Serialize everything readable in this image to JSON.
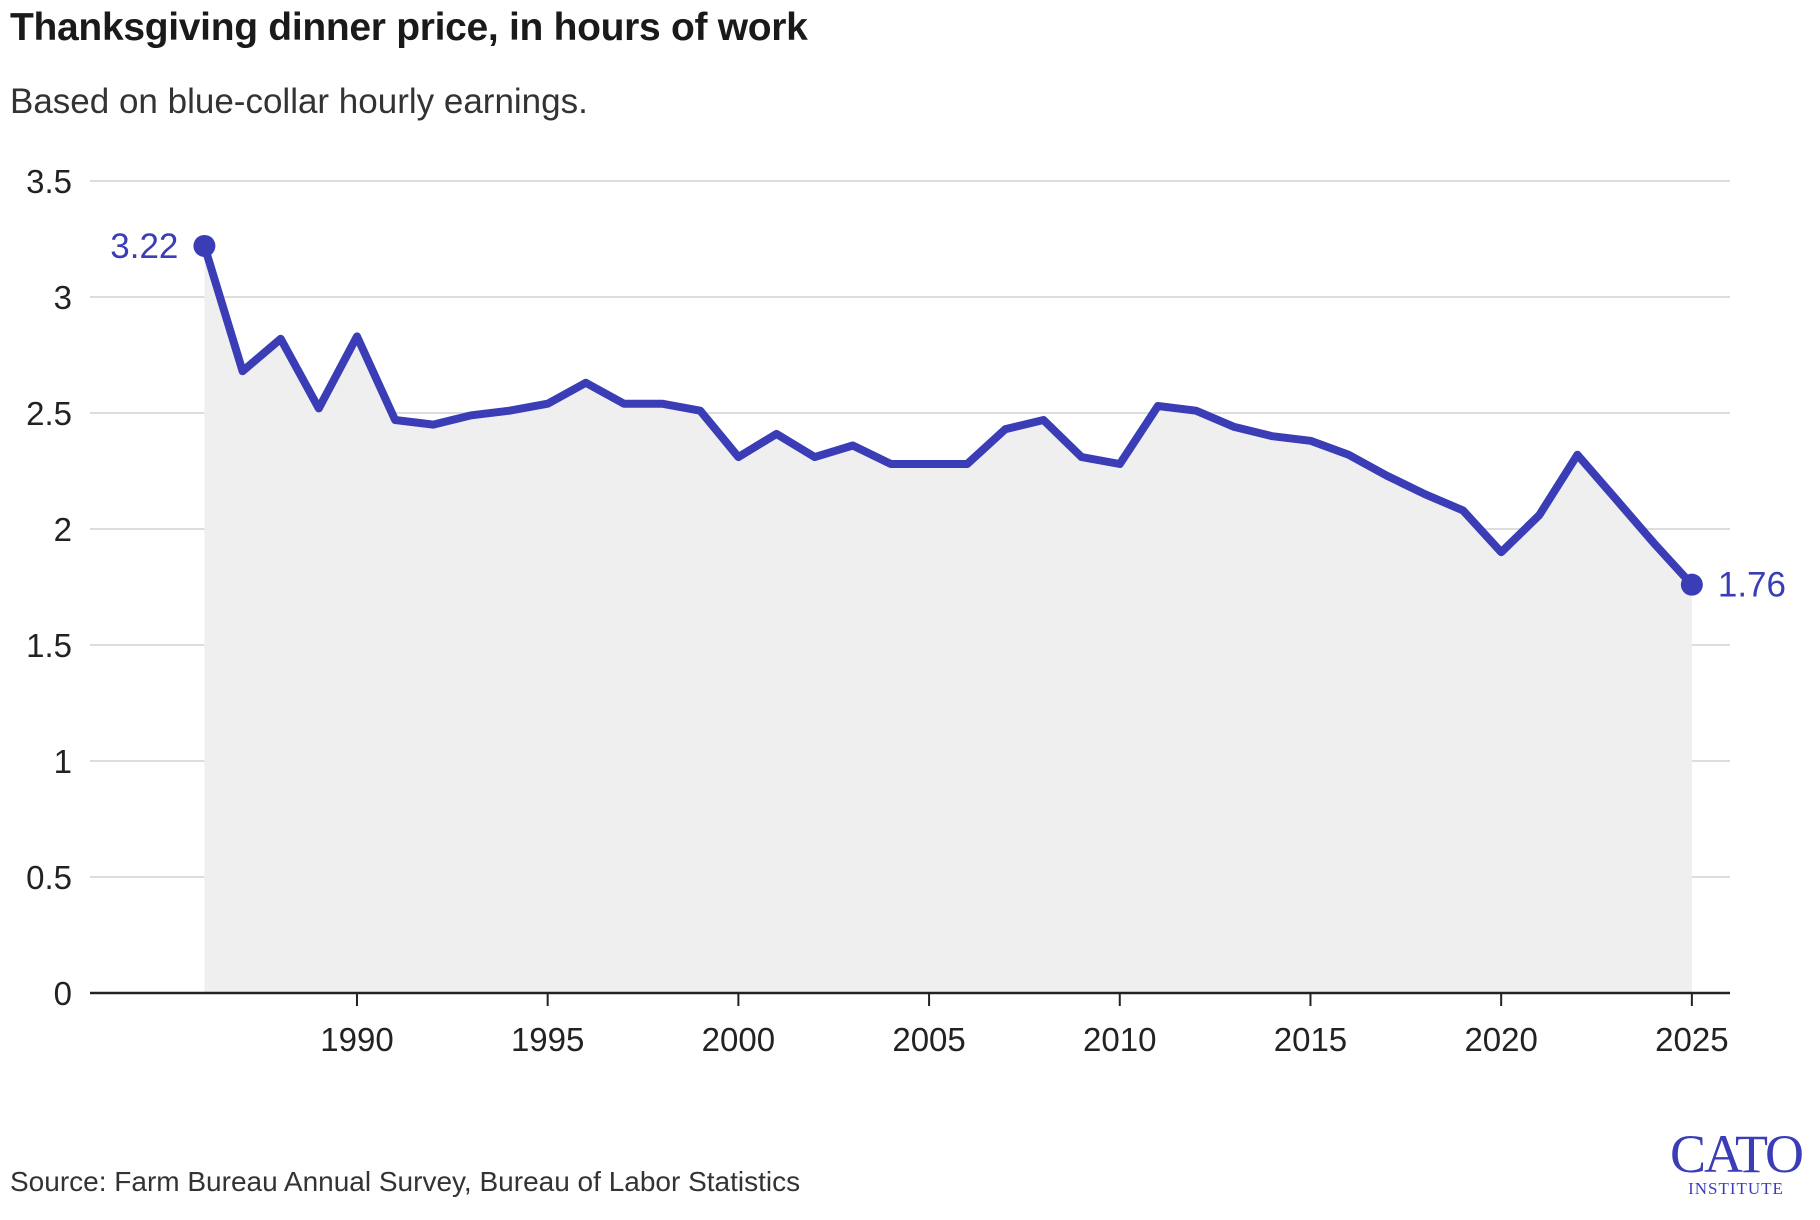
{
  "title": "Thanksgiving dinner price, in hours of work",
  "subtitle": "Based on blue-collar hourly earnings.",
  "source": "Source: Farm Bureau Annual Survey, Bureau of Labor Statistics",
  "logo": {
    "line1": "CATO",
    "line2": "INSTITUTE"
  },
  "colors": {
    "line": "#3a3db5",
    "area": "#efefef",
    "grid": "#dddddd",
    "axis": "#222222"
  },
  "chart_data": {
    "type": "area",
    "title": "Thanksgiving dinner price, in hours of work",
    "xlabel": "",
    "ylabel": "",
    "xlim": [
      1983,
      2026
    ],
    "ylim": [
      0,
      3.5
    ],
    "grid": true,
    "x_ticks": [
      1990,
      1995,
      2000,
      2005,
      2010,
      2015,
      2020,
      2025
    ],
    "y_ticks": [
      0,
      0.5,
      1,
      1.5,
      2,
      2.5,
      3,
      3.5
    ],
    "x": [
      1986,
      1987,
      1988,
      1989,
      1990,
      1991,
      1992,
      1993,
      1994,
      1995,
      1996,
      1997,
      1998,
      1999,
      2000,
      2001,
      2002,
      2003,
      2004,
      2005,
      2006,
      2007,
      2008,
      2009,
      2010,
      2011,
      2012,
      2013,
      2014,
      2015,
      2016,
      2017,
      2018,
      2019,
      2020,
      2021,
      2022,
      2023,
      2024,
      2025
    ],
    "series": [
      {
        "name": "Hours of work",
        "values": [
          3.22,
          2.68,
          2.82,
          2.52,
          2.83,
          2.47,
          2.45,
          2.49,
          2.51,
          2.54,
          2.63,
          2.54,
          2.54,
          2.51,
          2.31,
          2.41,
          2.31,
          2.36,
          2.28,
          2.28,
          2.28,
          2.43,
          2.47,
          2.31,
          2.28,
          2.53,
          2.51,
          2.44,
          2.4,
          2.38,
          2.32,
          2.23,
          2.15,
          2.08,
          1.9,
          2.06,
          2.32,
          2.13,
          1.94,
          1.76
        ]
      }
    ],
    "annotations": [
      {
        "x": 1986,
        "y": 3.22,
        "text": "3.22"
      },
      {
        "x": 2025,
        "y": 1.76,
        "text": "1.76"
      }
    ]
  }
}
